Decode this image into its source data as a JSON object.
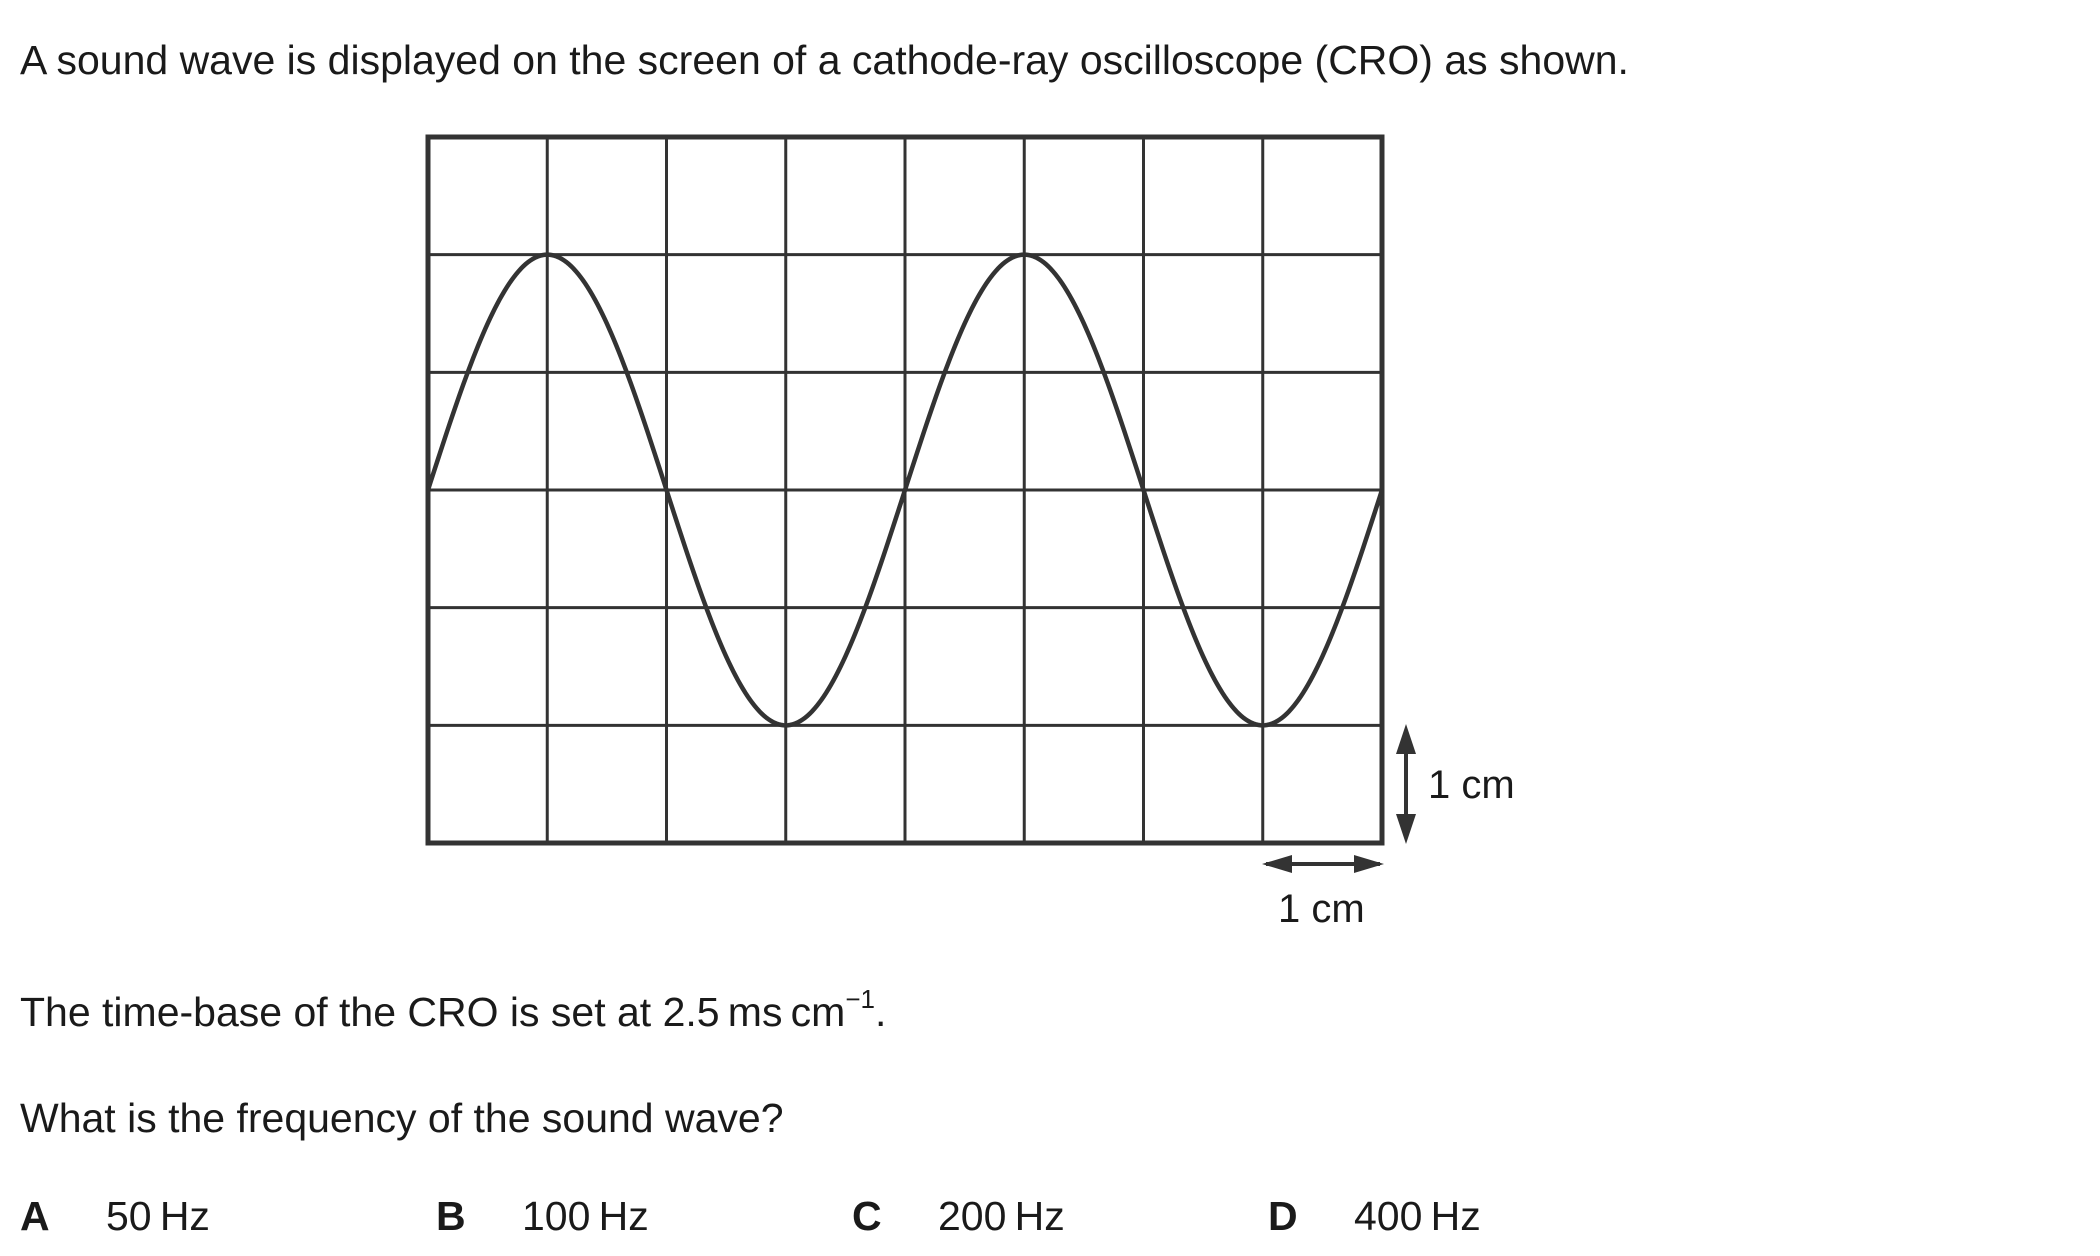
{
  "question": {
    "intro": "A sound wave is displayed on the screen of a cathode-ray oscilloscope (CRO) as shown.",
    "timebase_text": "The time-base of the CRO is set at 2.5 ms cm",
    "timebase_superscript": "−1",
    "timebase_end": ".",
    "prompt": "What is the frequency of the sound wave?"
  },
  "options": [
    {
      "letter": "A",
      "text": "50 Hz"
    },
    {
      "letter": "B",
      "text": "100 Hz"
    },
    {
      "letter": "C",
      "text": "200 Hz"
    },
    {
      "letter": "D",
      "text": "400 Hz"
    }
  ],
  "diagram": {
    "grid_columns": 8,
    "grid_rows": 6,
    "wave": {
      "amplitude_cm": 2,
      "period_cm": 4,
      "phase": "rising from zero at left edge"
    },
    "scale_labels": {
      "vertical": "1 cm",
      "horizontal": "1 cm"
    },
    "line_color": "#333333"
  }
}
